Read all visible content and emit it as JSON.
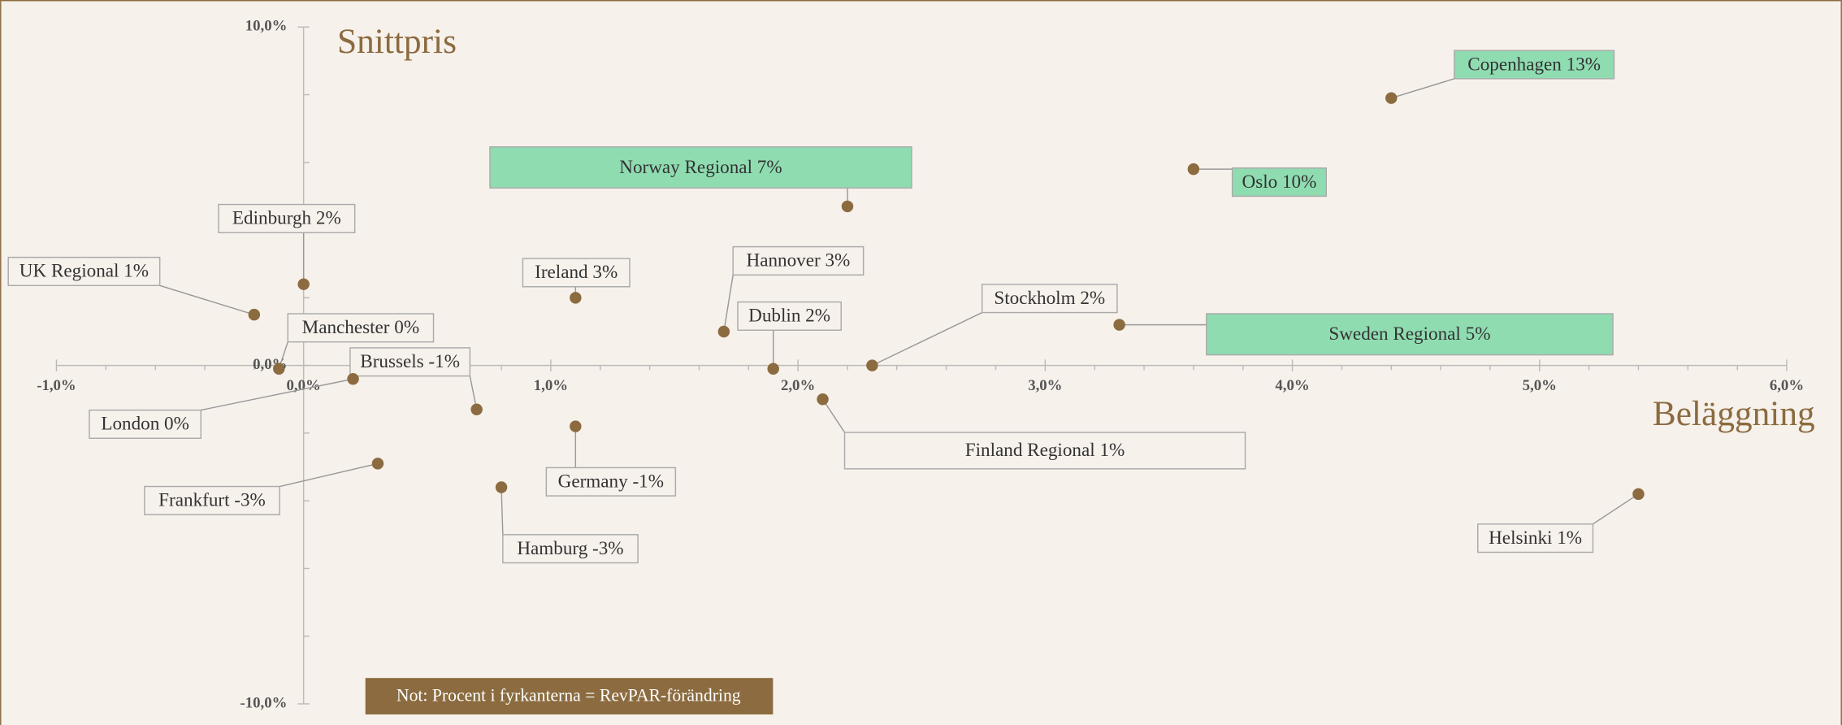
{
  "chart_data": {
    "type": "scatter",
    "y_label": "Snittpris",
    "x_label": "Beläggning",
    "note": "Not: Procent i fyrkanterna = RevPAR-förändring",
    "x": [
      4.4,
      3.6,
      2.2,
      0.0,
      -0.2,
      1.1,
      1.7,
      1.9,
      2.3,
      3.3,
      -0.1,
      0.2,
      0.7,
      1.1,
      2.1,
      0.3,
      0.8,
      5.4
    ],
    "values": [
      7.9,
      5.8,
      4.7,
      2.4,
      1.5,
      2.0,
      1.0,
      -0.1,
      0.0,
      1.2,
      -0.1,
      -0.4,
      -1.3,
      -1.8,
      -1.0,
      -2.9,
      -3.6,
      -3.8
    ],
    "labels": [
      "Copenhagen 13%",
      "Oslo 10%",
      "Norway Regional 7%",
      "Edinburgh 2%",
      "UK Regional 1%",
      "Ireland 3%",
      "Hannover 3%",
      "Dublin 2%",
      "Stockholm 2%",
      "Sweden Regional 5%",
      "Manchester 0%",
      "London 0%",
      "Brussels -1%",
      "Germany -1%",
      "Finland Regional 1%",
      "Frankfurt -3%",
      "Hamburg -3%",
      "Helsinki 1%"
    ],
    "label_colors": [
      "#8fdcb1",
      "#8fdcb1",
      "#8fdcb1",
      "#f7f1ec",
      "#f7f1ec",
      "#f7f1ec",
      "#f7f1ec",
      "#f7f1ec",
      "#f7f1ec",
      "#8fdcb1",
      "#f7f1ec",
      "#f7f1ec",
      "#f7f1ec",
      "#f7f1ec",
      "#f7f1ec",
      "#f7f1ec",
      "#f7f1ec",
      "#f7f1ec"
    ],
    "color": "#8b6b3f",
    "xlim": [
      -1,
      6
    ],
    "ylim": [
      -10,
      10
    ],
    "xticks": [
      {
        "value": -1,
        "label": "-1,0%"
      },
      {
        "value": 0,
        "label": "0,0%"
      },
      {
        "value": 1,
        "label": "1,0%"
      },
      {
        "value": 2,
        "label": "2,0%"
      },
      {
        "value": 3,
        "label": "3,0%"
      },
      {
        "value": 4,
        "label": "4,0%"
      },
      {
        "value": 5,
        "label": "5,0%"
      },
      {
        "value": 6,
        "label": "6,0%"
      }
    ],
    "yticks": [
      {
        "value": 10,
        "label": "10,0%"
      },
      {
        "value": 0,
        "label": "0,0%"
      },
      {
        "value": -10,
        "label": "-10,0%"
      }
    ],
    "x_minor_ticks": [
      -0.8,
      -0.6,
      -0.4,
      -0.2,
      0.2,
      0.4,
      0.6,
      0.8,
      1.2,
      1.4,
      1.6,
      1.8,
      2.2,
      2.4,
      2.6,
      2.8,
      3.2,
      3.4,
      3.6,
      3.8,
      4.2,
      4.4,
      4.6,
      4.8,
      5.2,
      5.4,
      5.6,
      5.8
    ],
    "y_minor_ticks": [
      8,
      6,
      4,
      2,
      -2,
      -4,
      -6,
      -8
    ]
  }
}
